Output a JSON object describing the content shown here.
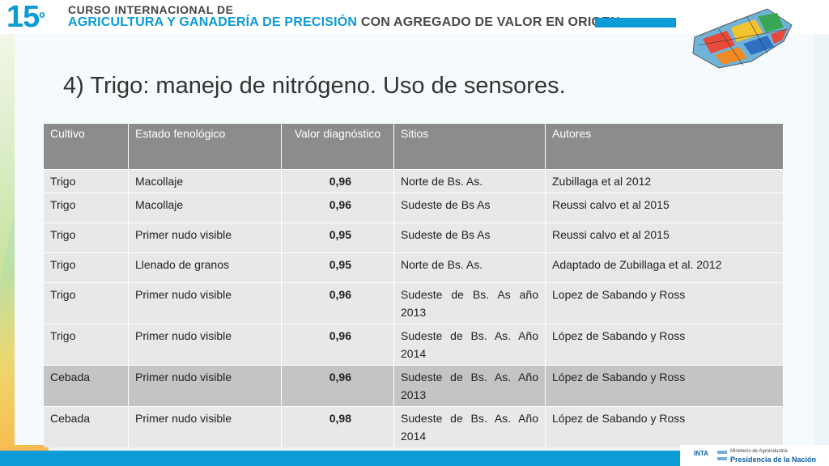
{
  "header": {
    "number": "15",
    "superscript": "º",
    "line1": "CURSO INTERNACIONAL DE",
    "line2_blue": "AGRICULTURA Y GANADERÍA DE PRECISIÓN",
    "line2_dark": "CON AGREGADO DE VALOR EN ORIGEN",
    "accent_color": "#0b9bd6"
  },
  "slide": {
    "title": "4) Trigo: manejo de nitrógeno. Uso de sensores."
  },
  "table": {
    "headers": [
      "Cultivo",
      "Estado fenológico",
      "Valor diagnóstico",
      "Sitios",
      "Autores"
    ],
    "rows": [
      {
        "cultivo": "Trigo",
        "estado": "Macollaje",
        "valor": "0,96",
        "sitio": "Norte de Bs. As.",
        "autores": "Zubillaga et al 2012"
      },
      {
        "cultivo": "Trigo",
        "estado": "Macollaje",
        "valor": "0,96",
        "sitio": "Sudeste de Bs As",
        "autores": "Reussi calvo et al 2015"
      },
      {
        "cultivo": "Trigo",
        "estado": "Primer nudo visible",
        "valor": "0,95",
        "sitio": "Sudeste de Bs As",
        "autores": "Reussi calvo et al 2015"
      },
      {
        "cultivo": "Trigo",
        "estado": "Llenado de granos",
        "valor": "0,95",
        "sitio": "Norte de Bs. As.",
        "autores": "Adaptado de Zubillaga et al. 2012"
      },
      {
        "cultivo": "Trigo",
        "estado": "Primer nudo visible",
        "valor": "0,96",
        "sitio": "Sudeste de Bs. As año 2013",
        "autores": "Lopez de Sabando y Ross"
      },
      {
        "cultivo": "Trigo",
        "estado": "Primer nudo visible",
        "valor": "0,96",
        "sitio": "Sudeste de Bs. As. Año 2014",
        "autores": "López de Sabando y Ross"
      },
      {
        "cultivo": "Cebada",
        "estado": "Primer nudo visible",
        "valor": "0,96",
        "sitio": "Sudeste de Bs. As. Año 2013",
        "autores": "López de Sabando y Ross"
      },
      {
        "cultivo": "Cebada",
        "estado": "Primer nudo visible",
        "valor": "0,98",
        "sitio": "Sudeste de Bs. As. Año 2014",
        "autores": "López de Sabando y Ross"
      }
    ]
  },
  "footer": {
    "inta": "INTA",
    "ministerio": "Ministerio de Agroindustria",
    "presidencia": "Presidencia de la Nación"
  }
}
